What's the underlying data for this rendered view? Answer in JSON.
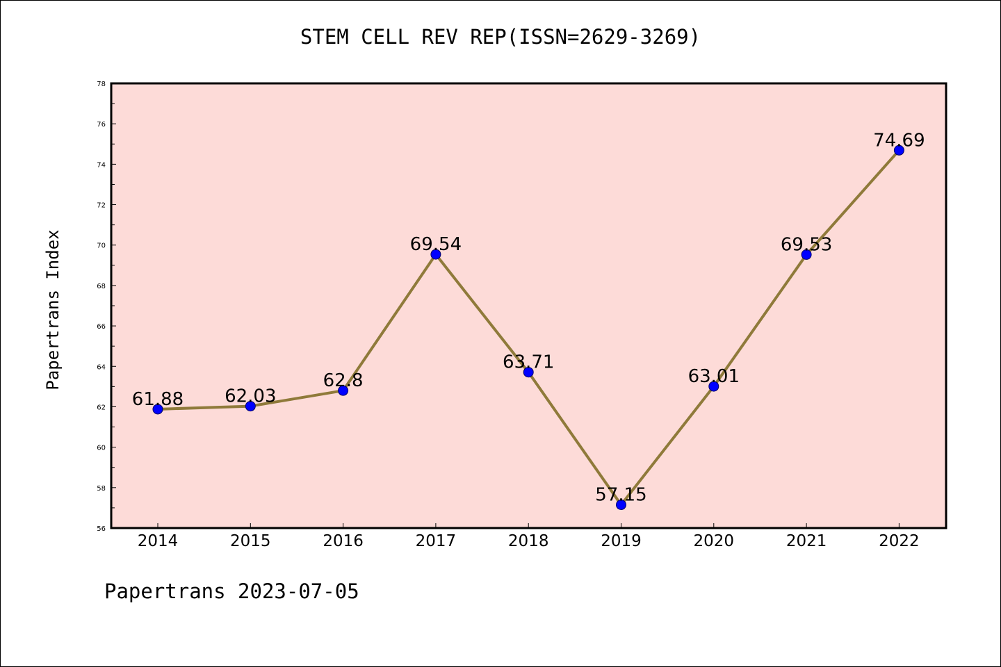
{
  "title": "STEM CELL REV REP(ISSN=2629-3269)",
  "ylabel": "Papertrans Index",
  "footer": "Papertrans 2023-07-05",
  "colors": {
    "plot_bg": "#fddbd8",
    "line": "#8f7a3a",
    "marker": "#0000ff",
    "axis": "#000000"
  },
  "chart_data": {
    "type": "line",
    "title": "STEM CELL REV REP(ISSN=2629-3269)",
    "xlabel": "",
    "ylabel": "Papertrans Index",
    "categories": [
      "2014",
      "2015",
      "2016",
      "2017",
      "2018",
      "2019",
      "2020",
      "2021",
      "2022"
    ],
    "series": [
      {
        "values": [
          61.88,
          62.03,
          62.8,
          69.54,
          63.71,
          57.15,
          63.01,
          69.53,
          74.69
        ],
        "labels": [
          "61.88",
          "62.03",
          "62.8",
          "69.54",
          "63.71",
          "57.15",
          "63.01",
          "69.53",
          "74.69"
        ]
      }
    ],
    "ylim": [
      56,
      78
    ],
    "yticks": [
      56,
      58,
      60,
      62,
      64,
      66,
      68,
      70,
      72,
      74,
      76,
      78
    ],
    "grid": false,
    "legend": "none"
  }
}
